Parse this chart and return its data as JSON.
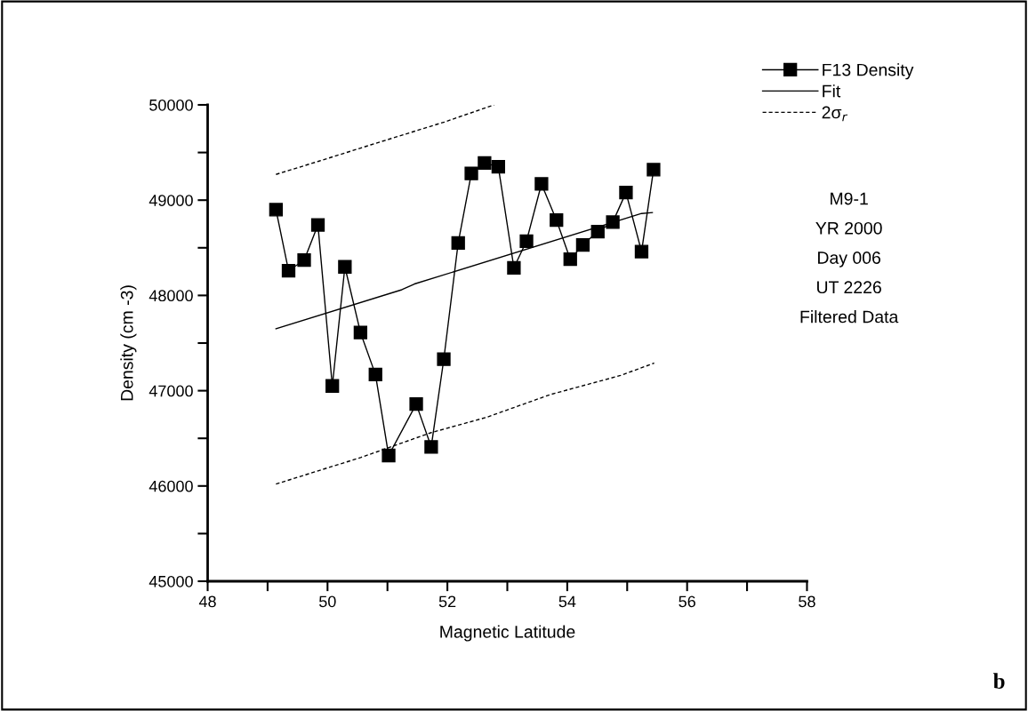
{
  "chart_data": {
    "type": "line",
    "xlabel": "Magnetic Latitude",
    "ylabel": "Density (cm -3)",
    "xlim": [
      48,
      58
    ],
    "ylim": [
      45000,
      50000
    ],
    "xticks": [
      48,
      {
        "value": 49,
        "label": null
      },
      50,
      {
        "value": 51,
        "label": null
      },
      52,
      {
        "value": 53,
        "label": null
      },
      54,
      {
        "value": 55,
        "label": null
      },
      56,
      {
        "value": 57,
        "label": null
      },
      58
    ],
    "yticks": [
      45000,
      {
        "value": 45500,
        "label": null
      },
      46000,
      {
        "value": 46500,
        "label": null
      },
      47000,
      {
        "value": 47500,
        "label": null
      },
      48000,
      {
        "value": 48500,
        "label": null
      },
      49000,
      {
        "value": 49500,
        "label": null
      },
      50000
    ],
    "grid": false,
    "legend": "top right",
    "series": [
      {
        "name": "F13 Density",
        "color": "#000000",
        "marker": "square",
        "line_style": "solid",
        "x": [
          49.14,
          49.35,
          49.61,
          49.84,
          50.08,
          50.29,
          50.55,
          50.8,
          51.02,
          51.48,
          51.73,
          51.94,
          52.18,
          52.4,
          52.62,
          52.85,
          53.11,
          53.32,
          53.57,
          53.82,
          54.05,
          54.26,
          54.51,
          54.76,
          54.98,
          55.24,
          55.44
        ],
        "values": [
          48900,
          48260,
          48370,
          48740,
          47050,
          48300,
          47610,
          47170,
          46320,
          46860,
          46410,
          47330,
          48550,
          49280,
          49390,
          49350,
          48290,
          48570,
          49170,
          48790,
          48380,
          48530,
          48670,
          48770,
          49080,
          48460,
          49320
        ]
      },
      {
        "name": "Fit",
        "color": "#000000",
        "marker": "none",
        "line_style": "solid",
        "x": [
          49.14,
          51.24,
          51.45,
          55.24,
          55.42
        ],
        "values": [
          47650,
          48060,
          48120,
          48860,
          48870
        ]
      },
      {
        "name": "2σ$_{r}$",
        "color": "#000000",
        "marker": "none",
        "line_style": "dashed",
        "x": [
          49.14,
          49.86,
          50.72,
          51.95,
          52.78
        ],
        "values": [
          49270,
          49410,
          49580,
          49820,
          50000
        ]
      },
      {
        "color": "#000000",
        "marker": "none",
        "line_style": "dashed",
        "x": [
          49.14,
          50.56,
          51.73,
          52.65,
          53.72,
          54.89,
          55.45
        ],
        "values": [
          46020,
          46300,
          46560,
          46720,
          46960,
          47160,
          47290
        ]
      }
    ],
    "annotations": [
      "M9-1",
      "YR 2000",
      "Day 006",
      "UT 2226",
      "Filtered Data",
      "b"
    ]
  }
}
